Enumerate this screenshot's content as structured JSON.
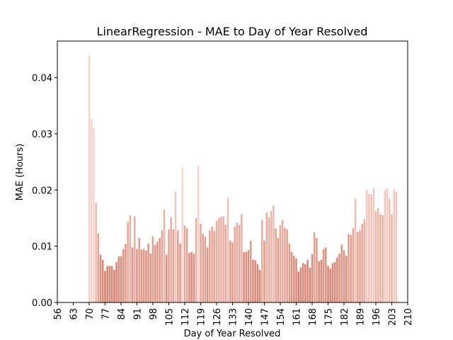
{
  "chart_data": {
    "type": "bar",
    "title": "LinearRegression - MAE to Day of Year Resolved",
    "x_label": "Day of Year Resolved",
    "y_label": "MAE (Hours)",
    "colormap": [
      "#d4806f",
      "#f8d6ce"
    ],
    "xlim": [
      56,
      210
    ],
    "xticks": [
      56,
      63,
      70,
      77,
      84,
      91,
      98,
      105,
      112,
      119,
      126,
      133,
      140,
      147,
      154,
      161,
      168,
      175,
      182,
      189,
      196,
      203,
      210
    ],
    "ylim": [
      0,
      0.0465
    ],
    "yticks": [
      {
        "value": 0,
        "label": "0.00"
      },
      {
        "value": 0.01,
        "label": "0.01"
      },
      {
        "value": 0.02,
        "label": "0.02"
      },
      {
        "value": 0.03,
        "label": "0.03"
      },
      {
        "value": 0.04,
        "label": "0.04"
      }
    ],
    "x": [
      70,
      71,
      72,
      73,
      74,
      75,
      76,
      77,
      78,
      79,
      80,
      81,
      82,
      83,
      84,
      85,
      86,
      87,
      88,
      89,
      90,
      91,
      92,
      93,
      94,
      95,
      96,
      97,
      98,
      99,
      100,
      101,
      102,
      103,
      104,
      105,
      106,
      107,
      108,
      109,
      110,
      111,
      112,
      113,
      114,
      115,
      116,
      117,
      118,
      119,
      120,
      121,
      122,
      123,
      124,
      125,
      126,
      127,
      128,
      129,
      130,
      131,
      132,
      133,
      134,
      135,
      136,
      137,
      138,
      139,
      140,
      141,
      142,
      143,
      144,
      145,
      146,
      147,
      148,
      149,
      150,
      151,
      152,
      153,
      154,
      155,
      156,
      157,
      158,
      159,
      160,
      161,
      162,
      163,
      164,
      165,
      166,
      167,
      168,
      169,
      170,
      171,
      172,
      173,
      174,
      175,
      176,
      177,
      178,
      179,
      180,
      181,
      182,
      183,
      184,
      185,
      186,
      187,
      188,
      189,
      190,
      191,
      192,
      193,
      194,
      195,
      196,
      197,
      198,
      199,
      200,
      201,
      202,
      203,
      204,
      205
    ],
    "values": [
      0.044,
      0.0326,
      0.031,
      0.0178,
      0.0123,
      0.0085,
      0.0076,
      0.0056,
      0.0065,
      0.0065,
      0.0065,
      0.0058,
      0.0072,
      0.0082,
      0.0082,
      0.0095,
      0.0104,
      0.0143,
      0.0155,
      0.0098,
      0.0153,
      0.0095,
      0.0115,
      0.0094,
      0.0095,
      0.0092,
      0.0105,
      0.0087,
      0.0118,
      0.0102,
      0.0108,
      0.0115,
      0.0128,
      0.0165,
      0.0085,
      0.013,
      0.0152,
      0.013,
      0.0198,
      0.0128,
      0.0105,
      0.024,
      0.0137,
      0.0132,
      0.0088,
      0.009,
      0.0087,
      0.015,
      0.0243,
      0.014,
      0.0122,
      0.0117,
      0.0098,
      0.0128,
      0.0135,
      0.0127,
      0.0145,
      0.015,
      0.0153,
      0.0153,
      0.0138,
      0.0186,
      0.011,
      0.0107,
      0.0135,
      0.0142,
      0.0138,
      0.0157,
      0.009,
      0.009,
      0.0093,
      0.011,
      0.0076,
      0.0075,
      0.0068,
      0.0058,
      0.0147,
      0.011,
      0.016,
      0.0152,
      0.0163,
      0.0173,
      0.0132,
      0.0115,
      0.0138,
      0.0147,
      0.0133,
      0.013,
      0.0105,
      0.009,
      0.0083,
      0.0078,
      0.0055,
      0.0062,
      0.007,
      0.0068,
      0.0076,
      0.0062,
      0.0086,
      0.0125,
      0.0115,
      0.0073,
      0.0076,
      0.0095,
      0.0098,
      0.0065,
      0.006,
      0.007,
      0.0072,
      0.008,
      0.0087,
      0.0103,
      0.0093,
      0.0083,
      0.0122,
      0.012,
      0.0132,
      0.0185,
      0.0125,
      0.0128,
      0.014,
      0.0148,
      0.02,
      0.0193,
      0.0192,
      0.0203,
      0.0162,
      0.0168,
      0.0157,
      0.0155,
      0.02,
      0.0203,
      0.0185,
      0.0157,
      0.0202,
      0.0197
    ]
  }
}
